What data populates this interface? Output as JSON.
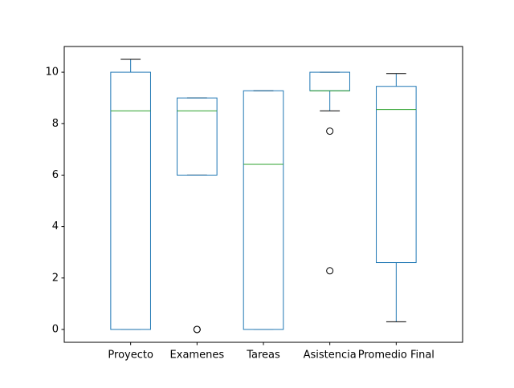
{
  "chart_data": {
    "type": "box",
    "title": "",
    "xlabel": "",
    "ylabel": "",
    "ylim": [
      -0.5,
      11.0
    ],
    "yticks": [
      0,
      2,
      4,
      6,
      8,
      10
    ],
    "grid": false,
    "colors": {
      "box": "#1f77b4",
      "median": "#2ca02c",
      "cap": "#000000",
      "flier": "#000000",
      "axes": "#000000"
    },
    "categories": [
      "Proyecto",
      "Examenes",
      "Tareas",
      "Asistencia",
      "Promedio Final"
    ],
    "series": [
      {
        "category": "Proyecto",
        "whisker_low": 0.0,
        "q1": 0.0,
        "median": 8.5,
        "q3": 10.0,
        "whisker_high": 10.5,
        "fliers": []
      },
      {
        "category": "Examenes",
        "whisker_low": 6.0,
        "q1": 6.0,
        "median": 8.5,
        "q3": 9.0,
        "whisker_high": 9.0,
        "fliers": [
          0.0,
          0.0
        ]
      },
      {
        "category": "Tareas",
        "whisker_low": 0.0,
        "q1": 0.0,
        "median": 6.42,
        "q3": 9.28,
        "whisker_high": 9.28,
        "fliers": []
      },
      {
        "category": "Asistencia",
        "whisker_low": 8.5,
        "q1": 9.28,
        "median": 9.28,
        "q3": 10.0,
        "whisker_high": 10.0,
        "fliers": [
          7.71,
          2.28
        ]
      },
      {
        "category": "Promedio Final",
        "whisker_low": 0.3,
        "q1": 2.6,
        "median": 8.55,
        "q3": 9.45,
        "whisker_high": 9.95,
        "fliers": []
      }
    ]
  }
}
